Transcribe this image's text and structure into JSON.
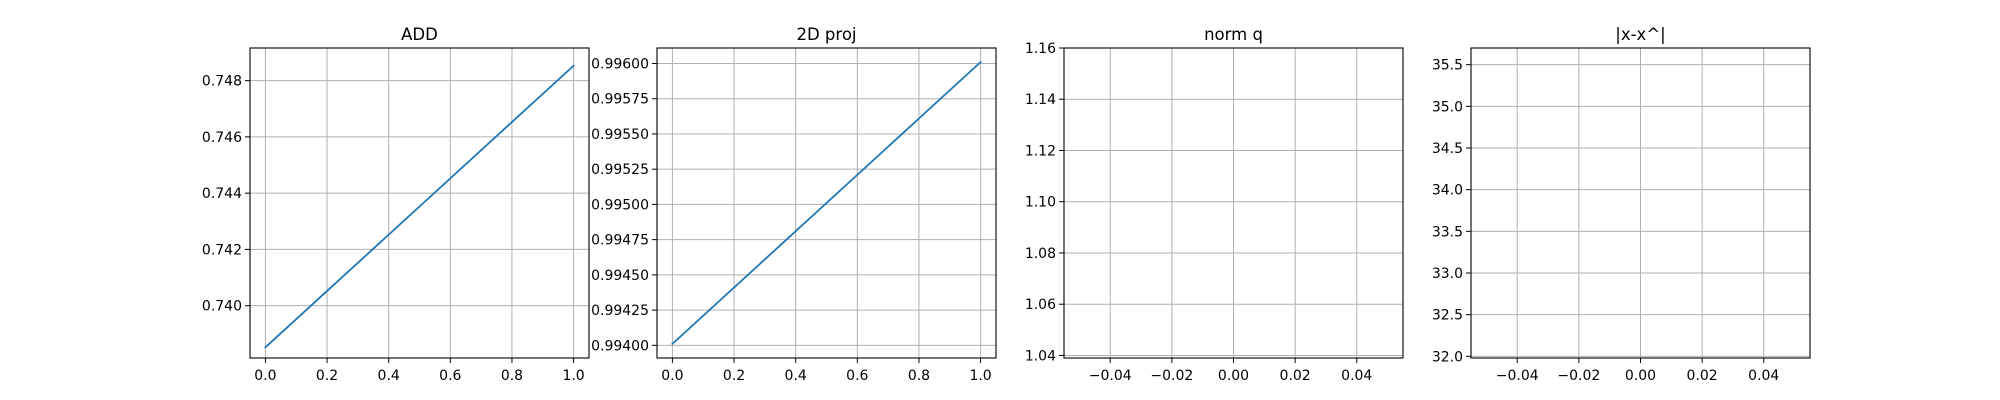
{
  "chart_data": [
    {
      "type": "line",
      "title": "ADD",
      "xlim": [
        -0.05,
        1.05
      ],
      "ylim": [
        0.73814,
        0.74916
      ],
      "xticks": [
        0.0,
        0.2,
        0.4,
        0.6,
        0.8,
        1.0
      ],
      "xtick_labels": [
        "0.0",
        "0.2",
        "0.4",
        "0.6",
        "0.8",
        "1.0"
      ],
      "yticks": [
        0.74,
        0.742,
        0.744,
        0.746,
        0.748
      ],
      "ytick_labels": [
        "0.740",
        "0.742",
        "0.744",
        "0.746",
        "0.748"
      ],
      "grid": true,
      "series": [
        {
          "x": [
            0,
            1
          ],
          "y": [
            0.73852,
            0.74853
          ],
          "color": "#1f77b4"
        }
      ]
    },
    {
      "type": "line",
      "title": "2D proj",
      "xlim": [
        -0.05,
        1.05
      ],
      "ylim": [
        0.99391,
        0.99611
      ],
      "xticks": [
        0.0,
        0.2,
        0.4,
        0.6,
        0.8,
        1.0
      ],
      "xtick_labels": [
        "0.0",
        "0.2",
        "0.4",
        "0.6",
        "0.8",
        "1.0"
      ],
      "yticks": [
        0.994,
        0.99425,
        0.9945,
        0.99475,
        0.995,
        0.99525,
        0.9955,
        0.99575,
        0.996
      ],
      "ytick_labels": [
        "0.99400",
        "0.99425",
        "0.99450",
        "0.99475",
        "0.99500",
        "0.99525",
        "0.99550",
        "0.99575",
        "0.99600"
      ],
      "grid": true,
      "series": [
        {
          "x": [
            0,
            1
          ],
          "y": [
            0.99401,
            0.99601
          ],
          "color": "#1f77b4"
        }
      ]
    },
    {
      "type": "line",
      "title": "norm q",
      "xlim": [
        -0.055,
        0.055
      ],
      "ylim": [
        1.039,
        1.16
      ],
      "xticks": [
        -0.04,
        -0.02,
        0.0,
        0.02,
        0.04
      ],
      "xtick_labels": [
        "−0.04",
        "−0.02",
        "0.00",
        "0.02",
        "0.04"
      ],
      "yticks": [
        1.04,
        1.06,
        1.08,
        1.1,
        1.12,
        1.14,
        1.16
      ],
      "ytick_labels": [
        "1.04",
        "1.06",
        "1.08",
        "1.10",
        "1.12",
        "1.14",
        "1.16"
      ],
      "grid": true,
      "series": []
    },
    {
      "type": "line",
      "title": "|x-x^|",
      "xlim": [
        -0.055,
        0.055
      ],
      "ylim": [
        31.98,
        35.7
      ],
      "xticks": [
        -0.04,
        -0.02,
        0.0,
        0.02,
        0.04
      ],
      "xtick_labels": [
        "−0.04",
        "−0.02",
        "0.00",
        "0.02",
        "0.04"
      ],
      "yticks": [
        32.0,
        32.5,
        33.0,
        33.5,
        34.0,
        34.5,
        35.0,
        35.5
      ],
      "ytick_labels": [
        "32.0",
        "32.5",
        "33.0",
        "33.5",
        "34.0",
        "34.5",
        "35.0",
        "35.5"
      ],
      "grid": true,
      "series": []
    }
  ]
}
